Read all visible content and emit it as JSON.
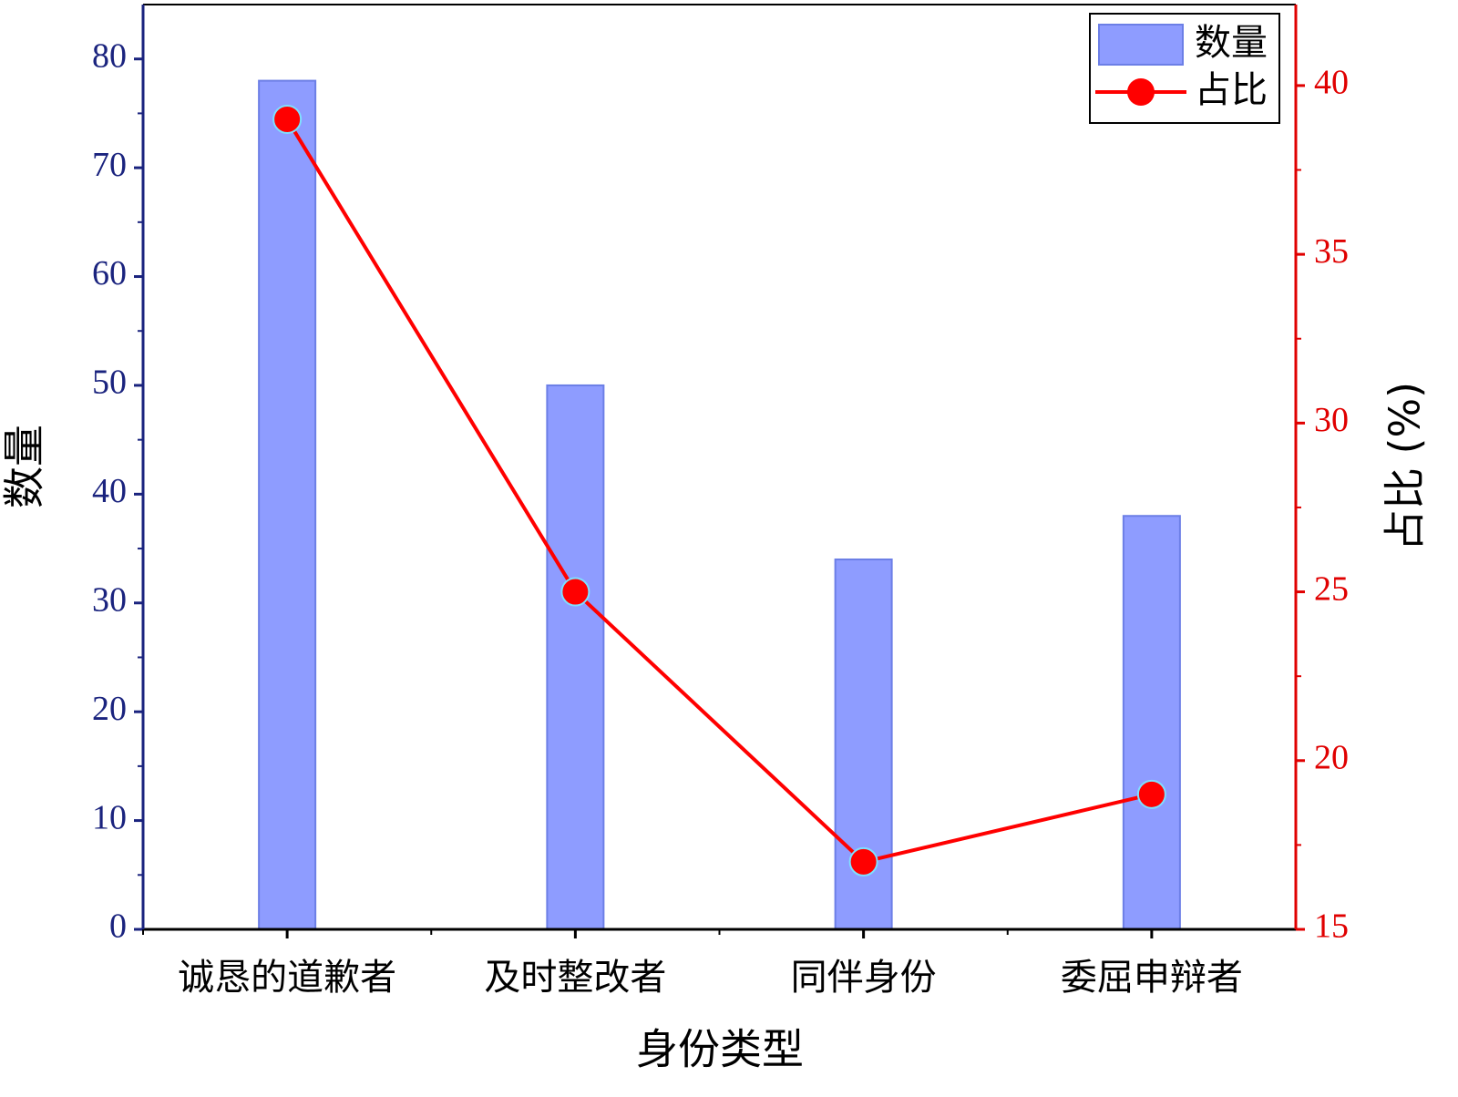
{
  "chart_data": {
    "type": "bar-line",
    "x_label": "身份类型",
    "y_label": "数量",
    "y2_label": "占比 (%)",
    "categories": [
      "诚恳的道歉者",
      "及时整改者",
      "同伴身份",
      "委屈申辩者"
    ],
    "series": [
      {
        "name": "数量",
        "type": "bar",
        "color": "#8e9cff",
        "values": [
          78,
          50,
          34,
          38
        ]
      },
      {
        "name": "占比",
        "type": "line",
        "color": "#ff0000",
        "axis": "y2",
        "values": [
          39,
          25,
          17,
          19
        ]
      }
    ],
    "ylim": [
      0,
      85
    ],
    "yticks": [
      0,
      10,
      20,
      30,
      40,
      50,
      60,
      70,
      80
    ],
    "y2lim": [
      15,
      42.4
    ],
    "y2ticks": [
      15,
      20,
      25,
      30,
      35,
      40
    ],
    "y_axis_color": "#1a237e",
    "y2_axis_color": "#e00000",
    "legend": "upper right"
  }
}
